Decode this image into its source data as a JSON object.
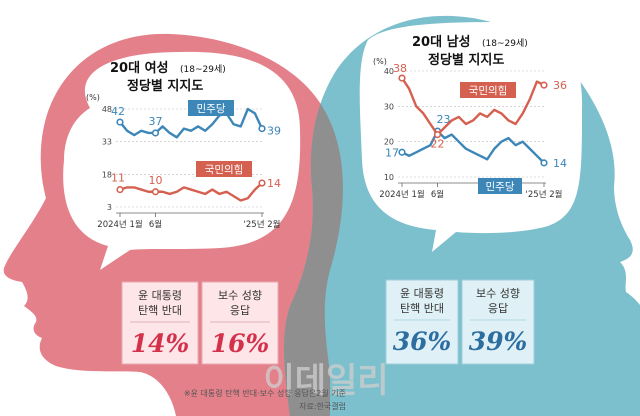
{
  "colors": {
    "female_bg": "#e3808a",
    "male_bg": "#7cbfcd",
    "overlap": "#8f8f8f",
    "dpk_line": "#3c86b8",
    "ppp_line": "#d56050",
    "pink_box": "#fde5e8",
    "blue_box": "#dff1f6",
    "pink_value": "#d4314b",
    "blue_value": "#2d6ea0",
    "watermark": "#cfcfcf"
  },
  "charts": {
    "female": {
      "title": "20대 여성",
      "title_range": "(18~29세)",
      "subtitle": "정당별 지지도",
      "unit": "(%)",
      "y_ticks": [
        "48",
        "33",
        "18",
        "3"
      ],
      "x_labels": [
        "2024년 1월",
        "6월",
        "'25년 2월"
      ]
    },
    "male": {
      "title": "20대 남성",
      "title_range": "(18~29세)",
      "subtitle": "정당별 지지도",
      "unit": "(%)",
      "y_ticks": [
        "40",
        "30",
        "20",
        "10"
      ],
      "x_labels": [
        "2024년 1월",
        "6월",
        "'25년 2월"
      ]
    }
  },
  "chart_data": [
    {
      "type": "line",
      "title": "20대 여성(18~29세) 정당별 지지도",
      "ylabel": "(%)",
      "ylim": [
        3,
        48
      ],
      "x": [
        1,
        2,
        3,
        4,
        5,
        6,
        7,
        8,
        9,
        10,
        11,
        12,
        13,
        14,
        15,
        16,
        17,
        18,
        19,
        20,
        21
      ],
      "x_tick_labels": {
        "1": "2024년 1월",
        "6": "6월",
        "21": "'25년 2월"
      },
      "series": [
        {
          "name": "민주당",
          "values": [
            42,
            38,
            36,
            38,
            37,
            37,
            40,
            37,
            35,
            39,
            38,
            40,
            38,
            41,
            45,
            46,
            41,
            40,
            48,
            46,
            39
          ],
          "labeled_values": [
            42,
            37,
            39
          ]
        },
        {
          "name": "국민의힘",
          "values": [
            11,
            12,
            12,
            11,
            10,
            10,
            10,
            9,
            10,
            12,
            11,
            10,
            9,
            11,
            9,
            10,
            8,
            6,
            7,
            11,
            14
          ],
          "labeled_values": [
            11,
            10,
            14
          ]
        }
      ]
    },
    {
      "type": "line",
      "title": "20대 남성(18~29세) 정당별 지지도",
      "ylabel": "(%)",
      "ylim": [
        10,
        40
      ],
      "x": [
        1,
        2,
        3,
        4,
        5,
        6,
        7,
        8,
        9,
        10,
        11,
        12,
        13,
        14,
        15,
        16,
        17,
        18,
        19,
        20,
        21
      ],
      "x_tick_labels": {
        "1": "2024년 1월",
        "6": "6월",
        "21": "'25년 2월"
      },
      "series": [
        {
          "name": "민주당",
          "values": [
            17,
            16,
            17,
            18,
            19,
            23,
            21,
            22,
            20,
            18,
            17,
            16,
            15,
            18,
            20,
            21,
            19,
            20,
            18,
            16,
            14
          ],
          "labeled_values": [
            17,
            23,
            14
          ]
        },
        {
          "name": "국민의힘",
          "values": [
            38,
            35,
            30,
            28,
            25,
            22,
            24,
            26,
            27,
            25,
            26,
            28,
            27,
            29,
            28,
            26,
            25,
            28,
            32,
            37,
            36
          ],
          "labeled_values": [
            38,
            22,
            36
          ]
        }
      ]
    }
  ],
  "female_stats": [
    {
      "label": "윤 대통령\n탄핵 반대",
      "value": "14%"
    },
    {
      "label": "보수 성향\n응답",
      "value": "16%"
    }
  ],
  "male_stats": [
    {
      "label": "윤 대통령\n탄핵 반대",
      "value": "36%"
    },
    {
      "label": "보수 성향\n응답",
      "value": "39%"
    }
  ],
  "footnote": "※윤 대통령 탄핵 반대·보수 성향 응답은2월 기준",
  "source": "자료:한국갤럽",
  "watermark": "이데일리"
}
